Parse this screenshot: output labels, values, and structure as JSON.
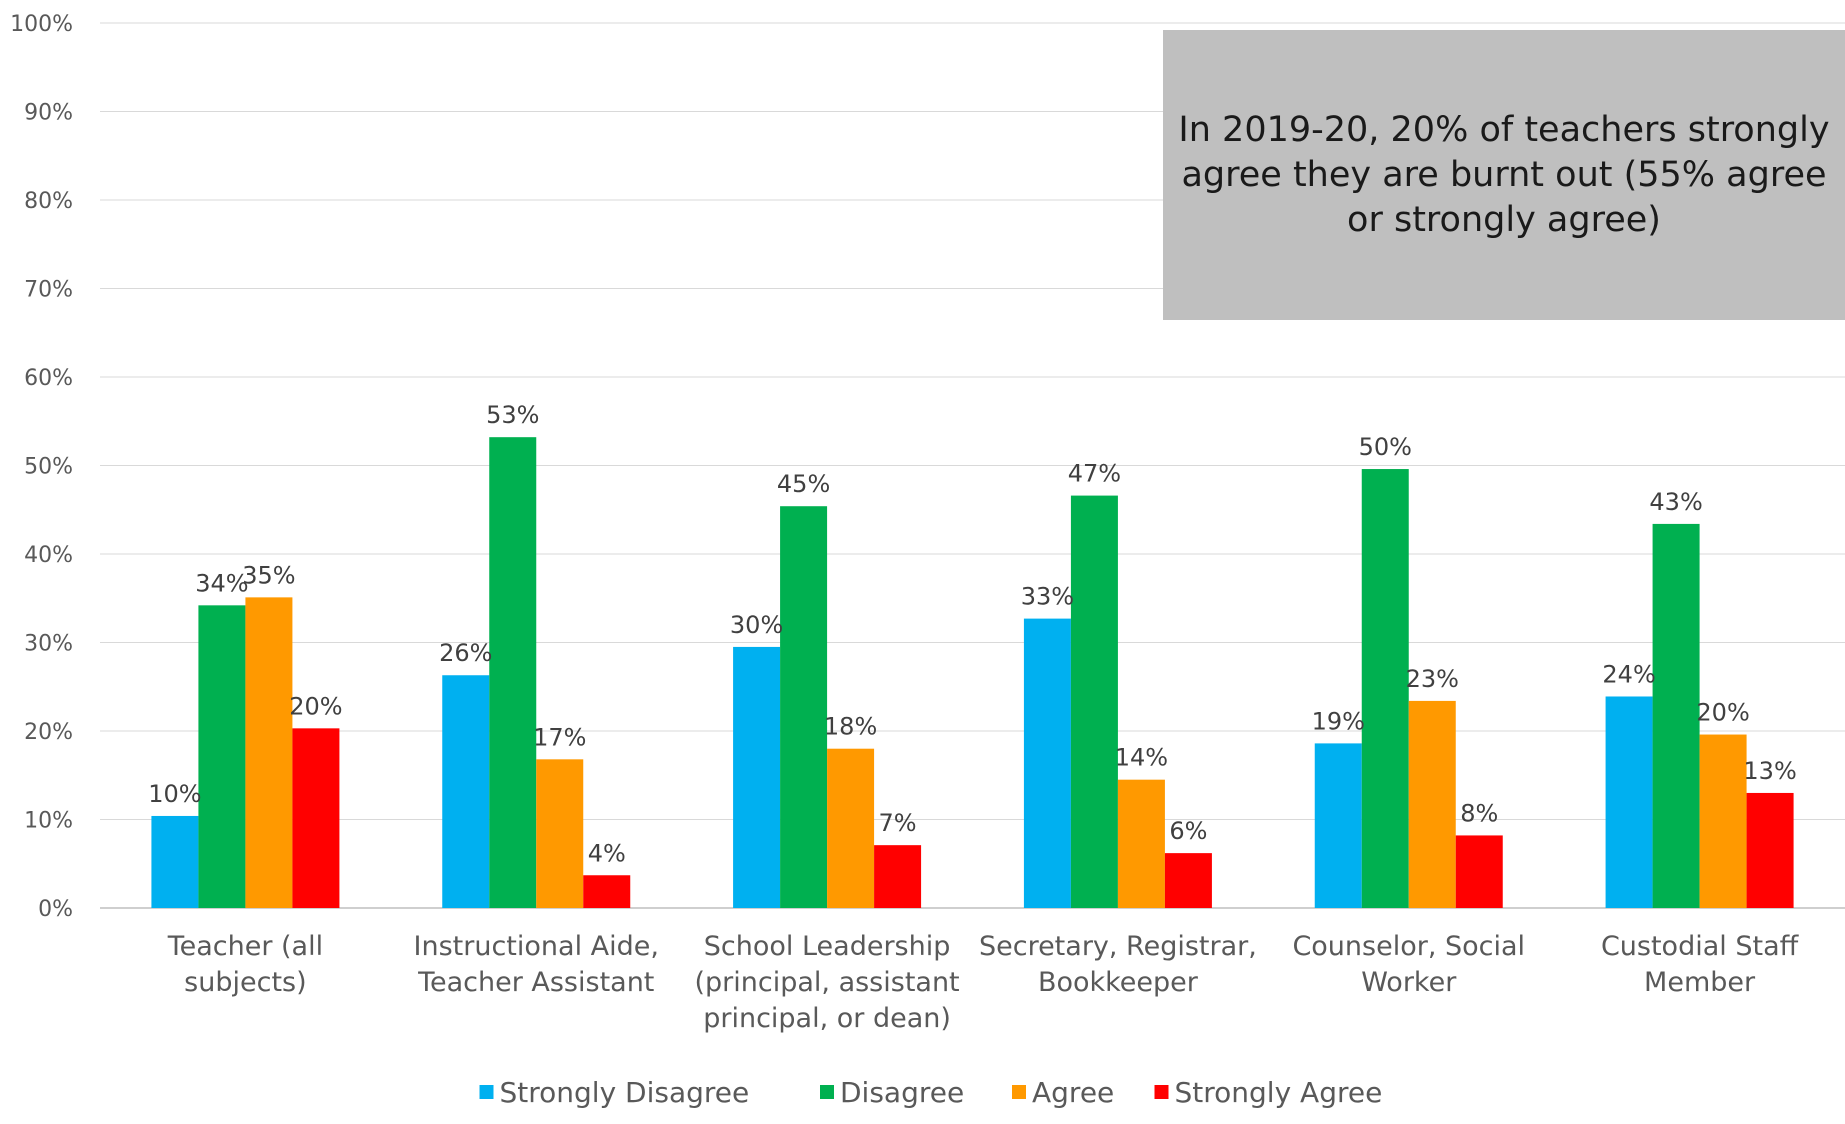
{
  "chart_data": {
    "type": "bar",
    "title": "",
    "xlabel": "",
    "ylabel": "",
    "ylim": [
      0,
      100
    ],
    "yticks": [
      "0%",
      "10%",
      "20%",
      "30%",
      "40%",
      "50%",
      "60%",
      "70%",
      "80%",
      "90%",
      "100%"
    ],
    "grid": true,
    "legend_position": "bottom",
    "categories": [
      [
        "Teacher (all",
        "subjects)"
      ],
      [
        "Instructional Aide,",
        "Teacher Assistant"
      ],
      [
        "School Leadership",
        "(principal, assistant",
        "principal, or dean)"
      ],
      [
        "Secretary, Registrar,",
        "Bookkeeper"
      ],
      [
        "Counselor, Social",
        "Worker"
      ],
      [
        "Custodial Staff",
        "Member"
      ]
    ],
    "series": [
      {
        "name": "Strongly Disagree",
        "color": "#00b0f0",
        "values": [
          10.4,
          26.3,
          29.5,
          32.7,
          18.6,
          23.9
        ],
        "labels": [
          "10%",
          "26%",
          "30%",
          "33%",
          "19%",
          "24%"
        ]
      },
      {
        "name": "Disagree",
        "color": "#00b050",
        "values": [
          34.2,
          53.2,
          45.4,
          46.6,
          49.6,
          43.4
        ],
        "labels": [
          "34%",
          "53%",
          "45%",
          "47%",
          "50%",
          "43%"
        ]
      },
      {
        "name": "Agree",
        "color": "#ff9900",
        "values": [
          35.1,
          16.8,
          18.0,
          14.5,
          23.4,
          19.6
        ],
        "labels": [
          "35%",
          "17%",
          "18%",
          "14%",
          "23%",
          "20%"
        ]
      },
      {
        "name": "Strongly Agree",
        "color": "#ff0000",
        "values": [
          20.3,
          3.7,
          7.1,
          6.2,
          8.2,
          13.0
        ],
        "labels": [
          "20%",
          "4%",
          "7%",
          "6%",
          "8%",
          "13%"
        ]
      }
    ],
    "annotation": "In 2019-20, 20% of teachers strongly agree they are burnt out (55% agree or strongly agree)"
  }
}
